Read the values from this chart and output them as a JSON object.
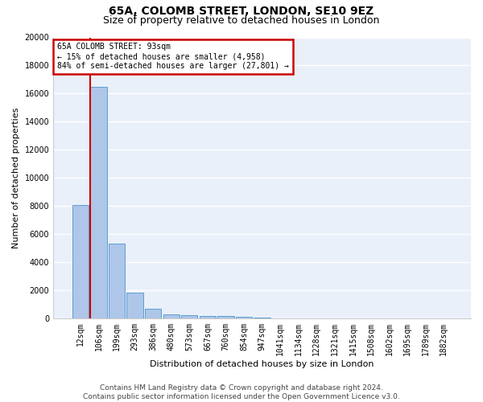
{
  "title": "65A, COLOMB STREET, LONDON, SE10 9EZ",
  "subtitle": "Size of property relative to detached houses in London",
  "xlabel": "Distribution of detached houses by size in London",
  "ylabel": "Number of detached properties",
  "categories": [
    "12sqm",
    "106sqm",
    "199sqm",
    "293sqm",
    "386sqm",
    "480sqm",
    "573sqm",
    "667sqm",
    "760sqm",
    "854sqm",
    "947sqm",
    "1041sqm",
    "1134sqm",
    "1228sqm",
    "1321sqm",
    "1415sqm",
    "1508sqm",
    "1602sqm",
    "1695sqm",
    "1789sqm",
    "1882sqm"
  ],
  "values": [
    8050,
    16500,
    5300,
    1850,
    700,
    290,
    220,
    185,
    160,
    130,
    50,
    20,
    10,
    5,
    5,
    5,
    5,
    5,
    5,
    5,
    5
  ],
  "bar_color": "#aec6e8",
  "bar_edge_color": "#5a9fd4",
  "background_color": "#eaf0fa",
  "grid_color": "#ffffff",
  "annotation_text": "65A COLOMB STREET: 93sqm\n← 15% of detached houses are smaller (4,958)\n84% of semi-detached houses are larger (27,801) →",
  "annotation_box_color": "#ffffff",
  "annotation_box_edge": "#cc0000",
  "marker_line_color": "#cc0000",
  "ylim": [
    0,
    20000
  ],
  "yticks": [
    0,
    2000,
    4000,
    6000,
    8000,
    10000,
    12000,
    14000,
    16000,
    18000,
    20000
  ],
  "footer": "Contains HM Land Registry data © Crown copyright and database right 2024.\nContains public sector information licensed under the Open Government Licence v3.0.",
  "title_fontsize": 10,
  "subtitle_fontsize": 9,
  "ylabel_fontsize": 8,
  "xlabel_fontsize": 8,
  "tick_fontsize": 7,
  "footer_fontsize": 6.5
}
